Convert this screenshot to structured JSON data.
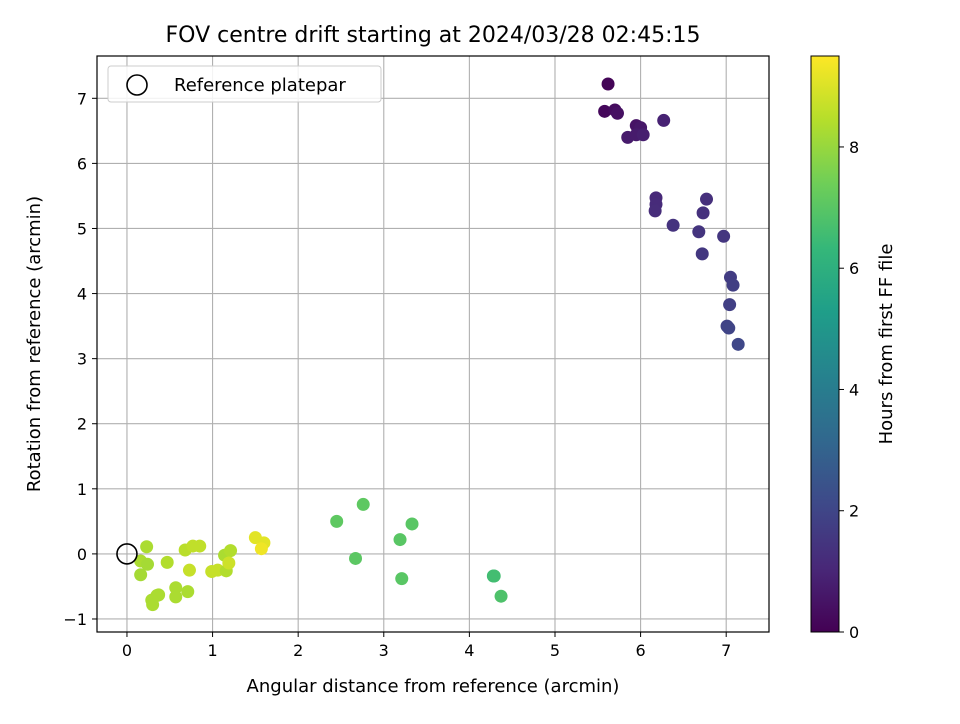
{
  "chart_data": {
    "type": "scatter",
    "title": "FOV centre drift starting at 2024/03/28 02:45:15",
    "xlabel": "Angular distance from reference (arcmin)",
    "ylabel": "Rotation from reference (arcmin)",
    "xlim": [
      -0.35,
      7.5
    ],
    "ylim": [
      -1.2,
      7.65
    ],
    "xticks": [
      0,
      1,
      2,
      3,
      4,
      5,
      6,
      7
    ],
    "yticks": [
      -1,
      0,
      1,
      2,
      3,
      4,
      5,
      6,
      7
    ],
    "grid": true,
    "legend": {
      "placement": "top-left",
      "entries": [
        "Reference platepar"
      ]
    },
    "reference_point": {
      "x": 0,
      "y": 0,
      "label": "Reference platepar"
    },
    "colorbar": {
      "label": "Hours from first FF file",
      "range": [
        0,
        9.5
      ],
      "ticks": [
        0,
        2,
        4,
        6,
        8
      ],
      "colormap": "viridis",
      "colors": [
        "#440154",
        "#482878",
        "#3e4989",
        "#31688e",
        "#26828e",
        "#1f9e89",
        "#35b779",
        "#6ece58",
        "#b5de2b",
        "#fde725"
      ]
    },
    "points": [
      {
        "x": 5.62,
        "y": 7.22,
        "c": 0.1
      },
      {
        "x": 5.58,
        "y": 6.8,
        "c": 0.2
      },
      {
        "x": 5.7,
        "y": 6.82,
        "c": 0.3
      },
      {
        "x": 5.73,
        "y": 6.77,
        "c": 0.4
      },
      {
        "x": 5.95,
        "y": 6.58,
        "c": 0.5
      },
      {
        "x": 6.0,
        "y": 6.55,
        "c": 0.6
      },
      {
        "x": 5.85,
        "y": 6.4,
        "c": 0.7
      },
      {
        "x": 5.95,
        "y": 6.44,
        "c": 0.7
      },
      {
        "x": 6.03,
        "y": 6.44,
        "c": 0.8
      },
      {
        "x": 6.27,
        "y": 6.66,
        "c": 0.9
      },
      {
        "x": 6.18,
        "y": 5.47,
        "c": 1.1
      },
      {
        "x": 6.18,
        "y": 5.37,
        "c": 1.15
      },
      {
        "x": 6.17,
        "y": 5.27,
        "c": 1.2
      },
      {
        "x": 6.77,
        "y": 5.45,
        "c": 1.3
      },
      {
        "x": 6.73,
        "y": 5.24,
        "c": 1.35
      },
      {
        "x": 6.38,
        "y": 5.05,
        "c": 1.4
      },
      {
        "x": 6.68,
        "y": 4.95,
        "c": 1.45
      },
      {
        "x": 6.97,
        "y": 4.88,
        "c": 1.5
      },
      {
        "x": 6.72,
        "y": 4.61,
        "c": 1.55
      },
      {
        "x": 7.05,
        "y": 4.25,
        "c": 1.7
      },
      {
        "x": 7.08,
        "y": 4.13,
        "c": 1.75
      },
      {
        "x": 7.04,
        "y": 3.83,
        "c": 1.8
      },
      {
        "x": 7.01,
        "y": 3.5,
        "c": 1.9
      },
      {
        "x": 7.03,
        "y": 3.47,
        "c": 1.95
      },
      {
        "x": 7.14,
        "y": 3.22,
        "c": 2.05
      },
      {
        "x": 2.45,
        "y": 0.5,
        "c": 7.1
      },
      {
        "x": 2.76,
        "y": 0.76,
        "c": 7.1
      },
      {
        "x": 3.33,
        "y": 0.46,
        "c": 7.0
      },
      {
        "x": 3.19,
        "y": 0.22,
        "c": 7.0
      },
      {
        "x": 2.67,
        "y": -0.07,
        "c": 7.05
      },
      {
        "x": 3.21,
        "y": -0.38,
        "c": 7.0
      },
      {
        "x": 4.28,
        "y": -0.34,
        "c": 6.5
      },
      {
        "x": 4.29,
        "y": -0.34,
        "c": 6.6
      },
      {
        "x": 4.37,
        "y": -0.65,
        "c": 6.8
      },
      {
        "x": 0.23,
        "y": 0.11,
        "c": 8.3
      },
      {
        "x": 0.16,
        "y": -0.11,
        "c": 8.3
      },
      {
        "x": 0.24,
        "y": -0.16,
        "c": 8.2
      },
      {
        "x": 0.16,
        "y": -0.32,
        "c": 8.2
      },
      {
        "x": 0.47,
        "y": -0.13,
        "c": 8.4
      },
      {
        "x": 0.68,
        "y": 0.06,
        "c": 8.5
      },
      {
        "x": 0.77,
        "y": 0.12,
        "c": 8.6
      },
      {
        "x": 0.85,
        "y": 0.12,
        "c": 8.6
      },
      {
        "x": 0.73,
        "y": -0.25,
        "c": 8.7
      },
      {
        "x": 0.57,
        "y": -0.52,
        "c": 8.3
      },
      {
        "x": 0.57,
        "y": -0.66,
        "c": 8.3
      },
      {
        "x": 0.71,
        "y": -0.58,
        "c": 8.3
      },
      {
        "x": 0.37,
        "y": -0.63,
        "c": 8.3
      },
      {
        "x": 0.35,
        "y": -0.64,
        "c": 8.3
      },
      {
        "x": 0.29,
        "y": -0.71,
        "c": 8.3
      },
      {
        "x": 0.3,
        "y": -0.78,
        "c": 8.3
      },
      {
        "x": 0.99,
        "y": -0.27,
        "c": 8.7
      },
      {
        "x": 1.06,
        "y": -0.25,
        "c": 8.7
      },
      {
        "x": 1.16,
        "y": -0.26,
        "c": 8.4
      },
      {
        "x": 1.14,
        "y": -0.02,
        "c": 8.3
      },
      {
        "x": 1.21,
        "y": 0.05,
        "c": 8.4
      },
      {
        "x": 1.19,
        "y": -0.14,
        "c": 8.8
      },
      {
        "x": 1.5,
        "y": 0.25,
        "c": 9.1
      },
      {
        "x": 1.6,
        "y": 0.17,
        "c": 9.1
      },
      {
        "x": 1.57,
        "y": 0.08,
        "c": 9.3
      }
    ]
  }
}
